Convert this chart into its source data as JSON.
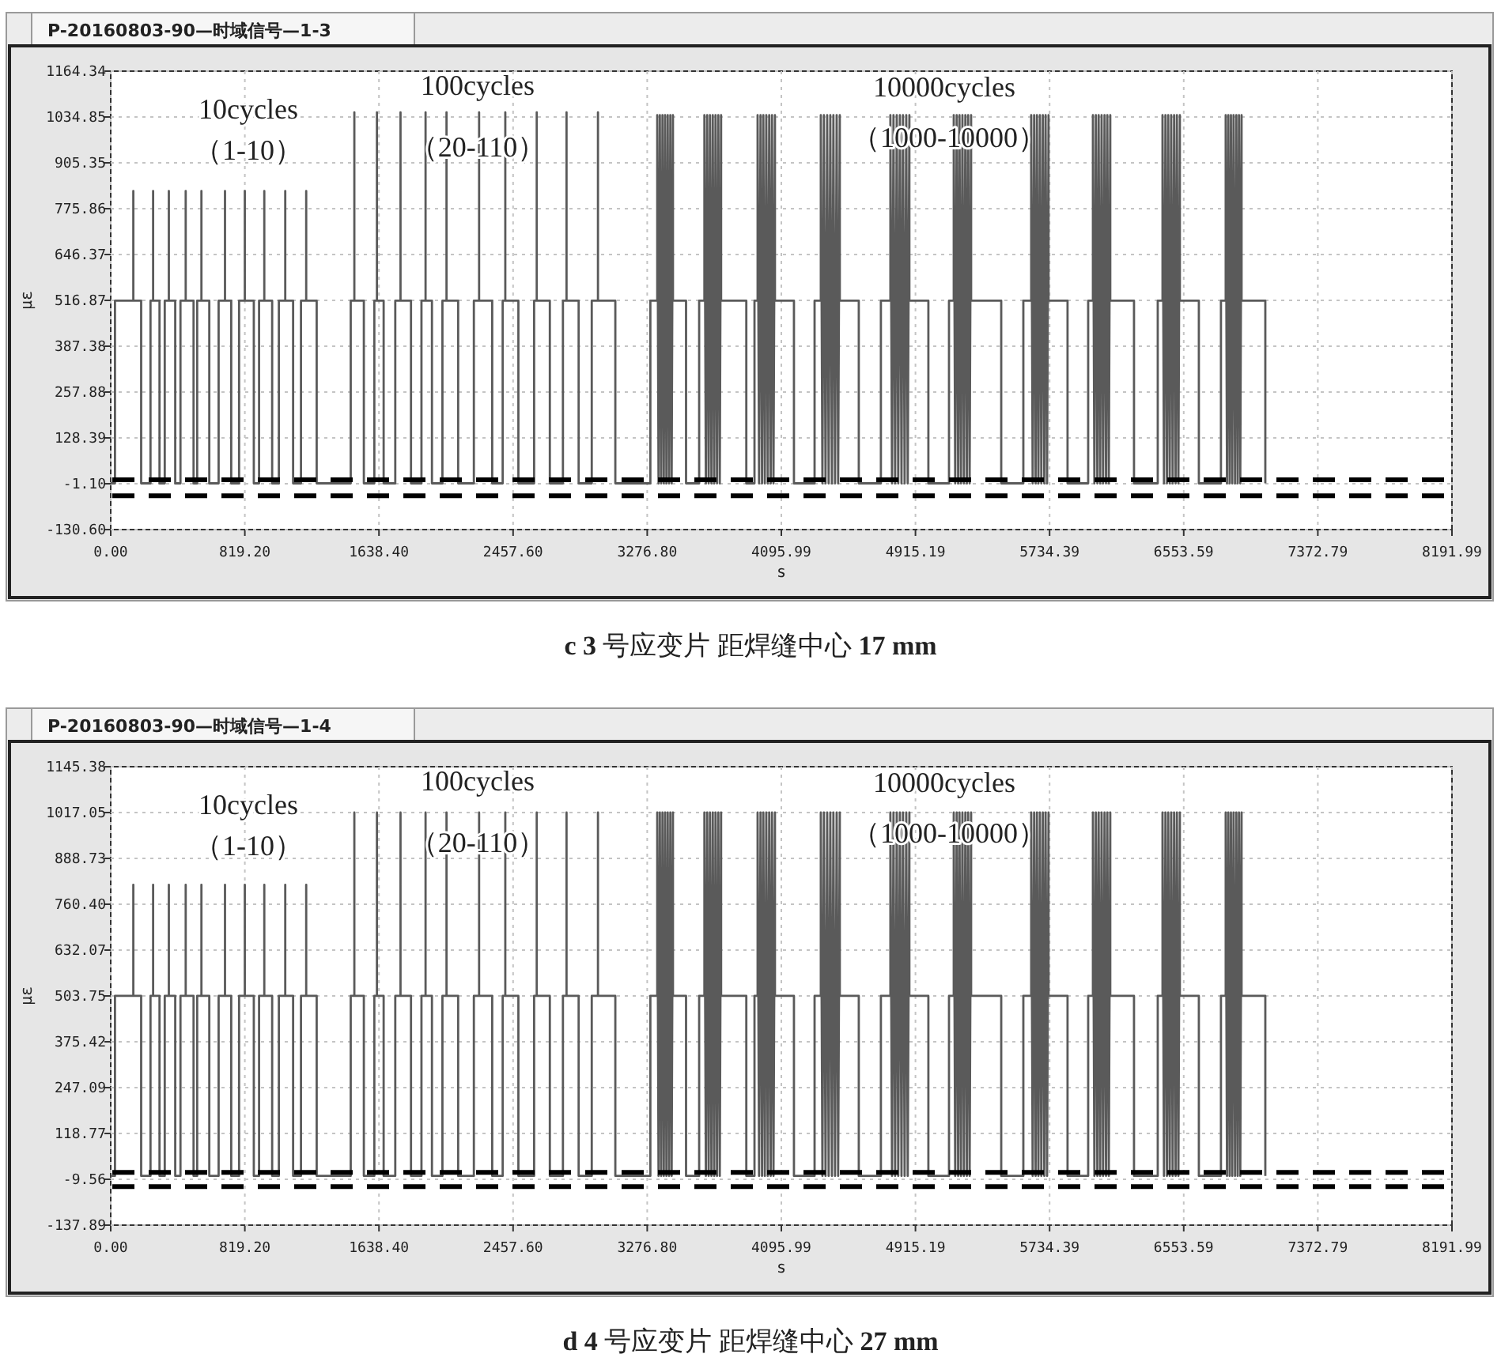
{
  "chart_data": [
    {
      "type": "line",
      "title": "P-20160803-90—时域信号—1-3",
      "xlabel": "s",
      "ylabel": "με",
      "xlim": [
        0,
        8191.99
      ],
      "ylim": [
        -130.6,
        1164.34
      ],
      "xticks": [
        {
          "value": 0,
          "label": "0.00"
        },
        {
          "value": 819.2,
          "label": "819.20"
        },
        {
          "value": 1638.4,
          "label": "1638.40"
        },
        {
          "value": 2457.6,
          "label": "2457.60"
        },
        {
          "value": 3276.8,
          "label": "3276.80"
        },
        {
          "value": 4095.99,
          "label": "4095.99"
        },
        {
          "value": 4915.19,
          "label": "4915.19"
        },
        {
          "value": 5734.39,
          "label": "5734.39"
        },
        {
          "value": 6553.59,
          "label": "6553.59"
        },
        {
          "value": 7372.79,
          "label": "7372.79"
        },
        {
          "value": 8191.99,
          "label": "8191.99"
        }
      ],
      "yticks": [
        {
          "value": -130.6,
          "label": "-130.60"
        },
        {
          "value": -1.1,
          "label": "-1.10"
        },
        {
          "value": 128.39,
          "label": "128.39"
        },
        {
          "value": 257.88,
          "label": "257.88"
        },
        {
          "value": 387.38,
          "label": "387.38"
        },
        {
          "value": 516.87,
          "label": "516.87"
        },
        {
          "value": 646.37,
          "label": "646.37"
        },
        {
          "value": 775.86,
          "label": "775.86"
        },
        {
          "value": 905.35,
          "label": "905.35"
        },
        {
          "value": 1034.85,
          "label": "1034.85"
        },
        {
          "value": 1164.34,
          "label": "1164.34"
        }
      ],
      "grid": true,
      "series": [
        {
          "color": "#5a5a5a",
          "x": [
            0,
            26,
            26,
            138,
            138,
            138,
            186,
            186,
            243,
            243,
            259,
            259,
            259,
            298,
            298,
            330,
            330,
            355,
            355,
            355,
            394,
            394,
            426,
            426,
            458,
            458,
            458,
            506,
            506,
            528,
            528,
            554,
            554,
            554,
            602,
            602,
            659,
            659,
            698,
            698,
            698,
            736,
            736,
            784,
            784,
            819,
            819,
            819,
            874,
            874,
            906,
            906,
            938,
            938,
            938,
            986,
            986,
            1027,
            1027,
            1066,
            1066,
            1066,
            1114,
            1114,
            1162,
            1162,
            1194,
            1194,
            1194,
            1258,
            1258,
            1466,
            1466,
            1488,
            1488,
            1488,
            1546,
            1546,
            1610,
            1610,
            1626,
            1626,
            1626,
            1667,
            1667,
            1738,
            1738,
            1770,
            1770,
            1770,
            1834,
            1834,
            1898,
            1898,
            1923,
            1923,
            1923,
            1962,
            1962,
            2026,
            2026,
            2051,
            2051,
            2051,
            2122,
            2122,
            2218,
            2218,
            2250,
            2250,
            2250,
            2330,
            2330,
            2394,
            2394,
            2410,
            2410,
            2410,
            2490,
            2490,
            2586,
            2586,
            2602,
            2602,
            2602,
            2682,
            2682,
            2762,
            2762,
            2784,
            2784,
            2784,
            2858,
            2858,
            2938,
            2938,
            2976,
            2976,
            2976,
            3082,
            3082,
            3296,
            3296,
            3338,
            3338,
            3346,
            3354,
            3362,
            3370,
            3378,
            3386,
            3394,
            3402,
            3410,
            3418,
            3426,
            3434,
            3434,
            3514,
            3514,
            3594,
            3594,
            3626,
            3626,
            3635,
            3643,
            3652,
            3660,
            3669,
            3677,
            3686,
            3694,
            3703,
            3711,
            3720,
            3728,
            3728,
            3882,
            3882,
            3932,
            3932,
            3951,
            3951,
            3960,
            3969,
            3978,
            3986,
            3995,
            4004,
            4013,
            4022,
            4031,
            4039,
            4048,
            4057,
            4057,
            4173,
            4173,
            4299,
            4299,
            4337,
            4337,
            4347,
            4356,
            4366,
            4376,
            4385,
            4395,
            4405,
            4414,
            4424,
            4434,
            4443,
            4453,
            4453,
            4569,
            4569,
            4704,
            4704,
            4762,
            4762,
            4772,
            4781,
            4791,
            4801,
            4810,
            4820,
            4830,
            4839,
            4849,
            4859,
            4868,
            4878,
            4878,
            4994,
            4994,
            5120,
            5120,
            5149,
            5149,
            5158,
            5167,
            5176,
            5184,
            5193,
            5202,
            5211,
            5220,
            5229,
            5237,
            5246,
            5255,
            5255,
            5439,
            5439,
            5574,
            5574,
            5622,
            5622,
            5631,
            5640,
            5649,
            5657,
            5666,
            5675,
            5684,
            5693,
            5702,
            5710,
            5719,
            5728,
            5728,
            5844,
            5844,
            5970,
            5970,
            5999,
            5999,
            6008,
            6017,
            6026,
            6034,
            6043,
            6052,
            6061,
            6070,
            6079,
            6087,
            6096,
            6105,
            6105,
            6250,
            6250,
            6395,
            6395,
            6424,
            6424,
            6433,
            6442,
            6451,
            6459,
            6468,
            6477,
            6486,
            6495,
            6504,
            6512,
            6521,
            6530,
            6530,
            6646,
            6646,
            6781,
            6781,
            6810,
            6810,
            6818,
            6826,
            6834,
            6842,
            6850,
            6858,
            6867,
            6875,
            6883,
            6891,
            6899,
            6907,
            6907,
            7052,
            7052
          ],
          "values": [
            0,
            0,
            516,
            516,
            826,
            516,
            516,
            0,
            0,
            516,
            516,
            826,
            516,
            516,
            0,
            0,
            516,
            516,
            826,
            516,
            516,
            0,
            0,
            516,
            516,
            826,
            516,
            516,
            0,
            0,
            516,
            516,
            826,
            516,
            516,
            0,
            0,
            516,
            516,
            826,
            516,
            516,
            0,
            0,
            516,
            516,
            826,
            516,
            516,
            0,
            0,
            516,
            516,
            826,
            516,
            516,
            0,
            0,
            516,
            516,
            826,
            516,
            516,
            0,
            0,
            516,
            516,
            826,
            516,
            516,
            0,
            0,
            516,
            516,
            1048,
            516,
            516,
            0,
            0,
            516,
            516,
            1048,
            516,
            516,
            0,
            0,
            516,
            516,
            1048,
            516,
            516,
            0,
            0,
            516,
            516,
            1048,
            516,
            516,
            0,
            0,
            516,
            516,
            1048,
            516,
            516,
            0,
            0,
            516,
            516,
            1048,
            516,
            516,
            0,
            0,
            516,
            516,
            1048,
            516,
            516,
            0,
            0,
            516,
            516,
            1048,
            516,
            516,
            0,
            0,
            516,
            516,
            1048,
            516,
            516,
            0,
            0,
            516,
            516,
            1048,
            516,
            516,
            0,
            0,
            516,
            516,
            1040,
            0,
            1040,
            0,
            1040,
            0,
            1040,
            0,
            1040,
            0,
            1040,
            0,
            1040,
            516,
            516,
            0,
            0,
            516,
            516,
            1040,
            0,
            1040,
            0,
            1040,
            0,
            1040,
            0,
            1040,
            0,
            1040,
            0,
            1040,
            516,
            516,
            0,
            0,
            516,
            516,
            1040,
            0,
            1040,
            0,
            1040,
            0,
            1040,
            0,
            1040,
            0,
            1040,
            0,
            1040,
            516,
            516,
            0,
            0,
            516,
            516,
            1040,
            0,
            1040,
            0,
            1040,
            0,
            1040,
            0,
            1040,
            0,
            1040,
            0,
            1040,
            516,
            516,
            0,
            0,
            516,
            516,
            1040,
            0,
            1040,
            0,
            1040,
            0,
            1040,
            0,
            1040,
            0,
            1040,
            0,
            1040,
            516,
            516,
            0,
            0,
            516,
            516,
            1040,
            0,
            1040,
            0,
            1040,
            0,
            1040,
            0,
            1040,
            0,
            1040,
            0,
            1040,
            516,
            516,
            0,
            0,
            516,
            516,
            1040,
            0,
            1040,
            0,
            1040,
            0,
            1040,
            0,
            1040,
            0,
            1040,
            0,
            1040,
            516,
            516,
            0,
            0,
            516,
            516,
            1040,
            0,
            1040,
            0,
            1040,
            0,
            1040,
            0,
            1040,
            0,
            1040,
            0,
            1040,
            516,
            516,
            0,
            0,
            516,
            516,
            1040,
            0,
            1040,
            0,
            1040,
            0,
            1040,
            0,
            1040,
            0,
            1040,
            0,
            1040,
            516,
            516,
            0,
            0,
            516,
            516,
            1040,
            0,
            1040,
            0,
            1040,
            0,
            1040,
            0,
            1040,
            0,
            1040,
            0,
            1040,
            516,
            516,
            0
          ]
        }
      ],
      "ref_lines": [
        {
          "axis": "y",
          "value": 10,
          "color": "#000000",
          "line_style": "dashed"
        },
        {
          "axis": "y",
          "value": -35,
          "color": "#000000",
          "line_style": "dashed"
        }
      ],
      "annotations": [
        "10cycles",
        "（1-10）",
        "100cycles",
        "（20-110）",
        "10000cycles",
        "（1000-10000）",
        "**c 3** 号应变片  距焊缝中心 **17 mm**"
      ]
    },
    {
      "type": "line",
      "title": "P-20160803-90—时域信号—1-4",
      "xlabel": "s",
      "ylabel": "με",
      "xlim": [
        0,
        8191.99
      ],
      "ylim": [
        -137.89,
        1145.38
      ],
      "xticks": [
        {
          "value": 0,
          "label": "0.00"
        },
        {
          "value": 819.2,
          "label": "819.20"
        },
        {
          "value": 1638.4,
          "label": "1638.40"
        },
        {
          "value": 2457.6,
          "label": "2457.60"
        },
        {
          "value": 3276.8,
          "label": "3276.80"
        },
        {
          "value": 4095.99,
          "label": "4095.99"
        },
        {
          "value": 4915.19,
          "label": "4915.19"
        },
        {
          "value": 5734.39,
          "label": "5734.39"
        },
        {
          "value": 6553.59,
          "label": "6553.59"
        },
        {
          "value": 7372.79,
          "label": "7372.79"
        },
        {
          "value": 8191.99,
          "label": "8191.99"
        }
      ],
      "yticks": [
        {
          "value": -137.89,
          "label": "-137.89"
        },
        {
          "value": -9.56,
          "label": "-9.56"
        },
        {
          "value": 118.77,
          "label": "118.77"
        },
        {
          "value": 247.09,
          "label": "247.09"
        },
        {
          "value": 375.42,
          "label": "375.42"
        },
        {
          "value": 503.75,
          "label": "503.75"
        },
        {
          "value": 632.07,
          "label": "632.07"
        },
        {
          "value": 760.4,
          "label": "760.40"
        },
        {
          "value": 888.73,
          "label": "888.73"
        },
        {
          "value": 1017.05,
          "label": "1017.05"
        },
        {
          "value": 1145.38,
          "label": "1145.38"
        }
      ],
      "grid": true,
      "series": [
        {
          "color": "#5a5a5a",
          "x": [
            0,
            26,
            26,
            138,
            138,
            138,
            186,
            186,
            243,
            243,
            259,
            259,
            259,
            298,
            298,
            330,
            330,
            355,
            355,
            355,
            394,
            394,
            426,
            426,
            458,
            458,
            458,
            506,
            506,
            528,
            528,
            554,
            554,
            554,
            602,
            602,
            659,
            659,
            698,
            698,
            698,
            736,
            736,
            784,
            784,
            819,
            819,
            819,
            874,
            874,
            906,
            906,
            938,
            938,
            938,
            986,
            986,
            1027,
            1027,
            1066,
            1066,
            1066,
            1114,
            1114,
            1162,
            1162,
            1194,
            1194,
            1194,
            1258,
            1258,
            1466,
            1466,
            1488,
            1488,
            1488,
            1546,
            1546,
            1610,
            1610,
            1626,
            1626,
            1626,
            1667,
            1667,
            1738,
            1738,
            1770,
            1770,
            1770,
            1834,
            1834,
            1898,
            1898,
            1923,
            1923,
            1923,
            1962,
            1962,
            2026,
            2026,
            2051,
            2051,
            2051,
            2122,
            2122,
            2218,
            2218,
            2250,
            2250,
            2250,
            2330,
            2330,
            2394,
            2394,
            2410,
            2410,
            2410,
            2490,
            2490,
            2586,
            2586,
            2602,
            2602,
            2602,
            2682,
            2682,
            2762,
            2762,
            2784,
            2784,
            2784,
            2858,
            2858,
            2938,
            2938,
            2976,
            2976,
            2976,
            3082,
            3082,
            3296,
            3296,
            3338,
            3338,
            3346,
            3354,
            3362,
            3370,
            3378,
            3386,
            3394,
            3402,
            3410,
            3418,
            3426,
            3434,
            3434,
            3514,
            3514,
            3594,
            3594,
            3626,
            3626,
            3635,
            3643,
            3652,
            3660,
            3669,
            3677,
            3686,
            3694,
            3703,
            3711,
            3720,
            3728,
            3728,
            3882,
            3882,
            3932,
            3932,
            3951,
            3951,
            3960,
            3969,
            3978,
            3986,
            3995,
            4004,
            4013,
            4022,
            4031,
            4039,
            4048,
            4057,
            4057,
            4173,
            4173,
            4299,
            4299,
            4337,
            4337,
            4347,
            4356,
            4366,
            4376,
            4385,
            4395,
            4405,
            4414,
            4424,
            4434,
            4443,
            4453,
            4453,
            4569,
            4569,
            4704,
            4704,
            4762,
            4762,
            4772,
            4781,
            4791,
            4801,
            4810,
            4820,
            4830,
            4839,
            4849,
            4859,
            4868,
            4878,
            4878,
            4994,
            4994,
            5120,
            5120,
            5149,
            5149,
            5158,
            5167,
            5176,
            5184,
            5193,
            5202,
            5211,
            5220,
            5229,
            5237,
            5246,
            5255,
            5255,
            5439,
            5439,
            5574,
            5574,
            5622,
            5622,
            5631,
            5640,
            5649,
            5657,
            5666,
            5675,
            5684,
            5693,
            5702,
            5710,
            5719,
            5728,
            5728,
            5844,
            5844,
            5970,
            5970,
            5999,
            5999,
            6008,
            6017,
            6026,
            6034,
            6043,
            6052,
            6061,
            6070,
            6079,
            6087,
            6096,
            6105,
            6105,
            6250,
            6250,
            6395,
            6395,
            6424,
            6424,
            6433,
            6442,
            6451,
            6459,
            6468,
            6477,
            6486,
            6495,
            6504,
            6512,
            6521,
            6530,
            6530,
            6646,
            6646,
            6781,
            6781,
            6810,
            6810,
            6818,
            6826,
            6834,
            6842,
            6850,
            6858,
            6867,
            6875,
            6883,
            6891,
            6899,
            6907,
            6907,
            7052,
            7052
          ],
          "values": [
            0,
            0,
            504,
            504,
            815,
            504,
            504,
            0,
            0,
            504,
            504,
            815,
            504,
            504,
            0,
            0,
            504,
            504,
            815,
            504,
            504,
            0,
            0,
            504,
            504,
            815,
            504,
            504,
            0,
            0,
            504,
            504,
            815,
            504,
            504,
            0,
            0,
            504,
            504,
            815,
            504,
            504,
            0,
            0,
            504,
            504,
            815,
            504,
            504,
            0,
            0,
            504,
            504,
            815,
            504,
            504,
            0,
            0,
            504,
            504,
            815,
            504,
            504,
            0,
            0,
            504,
            504,
            815,
            504,
            504,
            0,
            0,
            504,
            504,
            1017,
            504,
            504,
            0,
            0,
            504,
            504,
            1017,
            504,
            504,
            0,
            0,
            504,
            504,
            1017,
            504,
            504,
            0,
            0,
            504,
            504,
            1017,
            504,
            504,
            0,
            0,
            504,
            504,
            1017,
            504,
            504,
            0,
            0,
            504,
            504,
            1017,
            504,
            504,
            0,
            0,
            504,
            504,
            1017,
            504,
            504,
            0,
            0,
            504,
            504,
            1017,
            504,
            504,
            0,
            0,
            504,
            504,
            1017,
            504,
            504,
            0,
            0,
            504,
            504,
            1017,
            504,
            504,
            0,
            0,
            504,
            504,
            1017,
            0,
            1017,
            0,
            1017,
            0,
            1017,
            0,
            1017,
            0,
            1017,
            0,
            1017,
            504,
            504,
            0,
            0,
            504,
            504,
            1017,
            0,
            1017,
            0,
            1017,
            0,
            1017,
            0,
            1017,
            0,
            1017,
            0,
            1017,
            504,
            504,
            0,
            0,
            504,
            504,
            1017,
            0,
            1017,
            0,
            1017,
            0,
            1017,
            0,
            1017,
            0,
            1017,
            0,
            1017,
            504,
            504,
            0,
            0,
            504,
            504,
            1017,
            0,
            1017,
            0,
            1017,
            0,
            1017,
            0,
            1017,
            0,
            1017,
            0,
            1017,
            504,
            504,
            0,
            0,
            504,
            504,
            1017,
            0,
            1017,
            0,
            1017,
            0,
            1017,
            0,
            1017,
            0,
            1017,
            0,
            1017,
            504,
            504,
            0,
            0,
            504,
            504,
            1017,
            0,
            1017,
            0,
            1017,
            0,
            1017,
            0,
            1017,
            0,
            1017,
            0,
            1017,
            504,
            504,
            0,
            0,
            504,
            504,
            1017,
            0,
            1017,
            0,
            1017,
            0,
            1017,
            0,
            1017,
            0,
            1017,
            0,
            1017,
            504,
            504,
            0,
            0,
            504,
            504,
            1017,
            0,
            1017,
            0,
            1017,
            0,
            1017,
            0,
            1017,
            0,
            1017,
            0,
            1017,
            504,
            504,
            0,
            0,
            504,
            504,
            1017,
            0,
            1017,
            0,
            1017,
            0,
            1017,
            0,
            1017,
            0,
            1017,
            0,
            1017,
            504,
            504,
            0,
            0,
            504,
            504,
            1017,
            0,
            1017,
            0,
            1017,
            0,
            1017,
            0,
            1017,
            0,
            1017,
            0,
            1017,
            504,
            504,
            0
          ]
        }
      ],
      "ref_lines": [
        {
          "axis": "y",
          "value": 10,
          "color": "#000000",
          "line_style": "dashed"
        },
        {
          "axis": "y",
          "value": -30,
          "color": "#000000",
          "line_style": "dashed"
        }
      ],
      "annotations": [
        "10cycles",
        "（1-10）",
        "100cycles",
        "（20-110）",
        "10000cycles",
        "（1000-10000）",
        "**d 4** 号应变片  距焊缝中心 **27 mm**"
      ]
    }
  ]
}
